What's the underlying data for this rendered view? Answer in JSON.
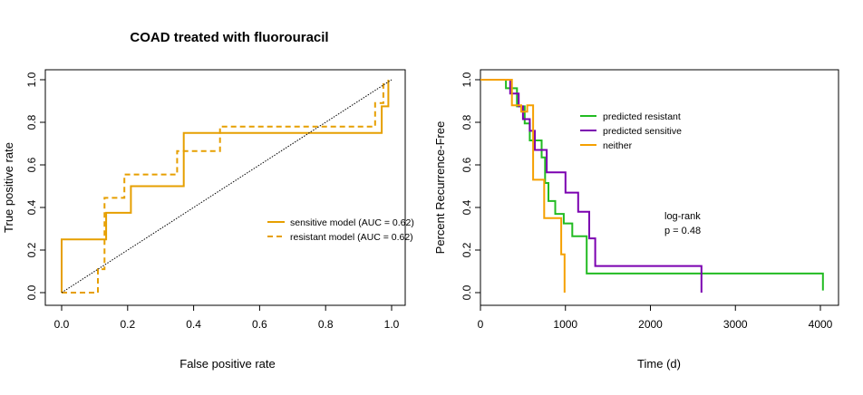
{
  "page": {
    "title": "COAD treated with fluorouracil"
  },
  "chart_data": [
    {
      "type": "line",
      "title": "COAD treated with fluorouracil",
      "xlabel": "False positive rate",
      "ylabel": "True positive rate",
      "xlim": [
        0,
        1
      ],
      "ylim": [
        0,
        1
      ],
      "xticks": [
        "0.0",
        "0.2",
        "0.4",
        "0.6",
        "0.8",
        "1.0"
      ],
      "yticks": [
        "0.0",
        "0.2",
        "0.4",
        "0.6",
        "0.8",
        "1.0"
      ],
      "legend_position": "right",
      "legend": [
        "sensitive model (AUC = 0.62)",
        "resistant model (AUC = 0.62)"
      ],
      "series": [
        {
          "name": "sensitive model (AUC = 0.62)",
          "color": "#E69F00",
          "dash": "solid",
          "x": [
            0,
            0,
            0.135,
            0.135,
            0.21,
            0.21,
            0.37,
            0.37,
            0.97,
            0.97,
            0.99,
            0.99
          ],
          "y": [
            0,
            0.25,
            0.25,
            0.375,
            0.375,
            0.5,
            0.5,
            0.75,
            0.75,
            0.875,
            0.875,
            1.0
          ]
        },
        {
          "name": "resistant model (AUC = 0.62)",
          "color": "#E69F00",
          "dash": "dashed",
          "x": [
            0,
            0.11,
            0.11,
            0.13,
            0.13,
            0.19,
            0.19,
            0.35,
            0.35,
            0.48,
            0.48,
            0.95,
            0.95,
            0.975,
            0.975
          ],
          "y": [
            0,
            0,
            0.11,
            0.11,
            0.445,
            0.445,
            0.555,
            0.555,
            0.665,
            0.665,
            0.78,
            0.78,
            0.89,
            0.89,
            1.0
          ]
        },
        {
          "name": "",
          "color": "#000000",
          "dash": "dotted",
          "x": [
            0,
            1
          ],
          "y": [
            0,
            1
          ]
        }
      ]
    },
    {
      "type": "line",
      "title": "",
      "xlabel": "Time (d)",
      "ylabel": "Percent Recurrence-Free",
      "xlim": [
        0,
        4000
      ],
      "ylim": [
        0,
        1
      ],
      "xticks": [
        "0",
        "1000",
        "2000",
        "3000",
        "4000"
      ],
      "yticks": [
        "0.0",
        "0.2",
        "0.4",
        "0.6",
        "0.8",
        "1.0"
      ],
      "legend_position": "top-center",
      "legend": [
        "predicted resistant",
        "predicted sensitive",
        "neither"
      ],
      "annotation": [
        "log-rank",
        "p = 0.48"
      ],
      "series": [
        {
          "name": "predicted resistant",
          "color": "#22BB22",
          "x": [
            0,
            300,
            300,
            430,
            430,
            520,
            520,
            580,
            580,
            720,
            720,
            760,
            760,
            800,
            800,
            880,
            880,
            980,
            980,
            1080,
            1080,
            1250,
            1250,
            4030,
            4030
          ],
          "y": [
            1.0,
            1.0,
            0.96,
            0.96,
            0.875,
            0.875,
            0.795,
            0.795,
            0.715,
            0.715,
            0.635,
            0.635,
            0.515,
            0.515,
            0.43,
            0.43,
            0.37,
            0.37,
            0.325,
            0.325,
            0.265,
            0.265,
            0.09,
            0.09,
            0.01
          ]
        },
        {
          "name": "predicted sensitive",
          "color": "#7B00B0",
          "x": [
            0,
            350,
            350,
            450,
            450,
            500,
            500,
            580,
            580,
            640,
            640,
            780,
            780,
            1000,
            1000,
            1150,
            1150,
            1280,
            1280,
            1350,
            1350,
            2600,
            2600
          ],
          "y": [
            1.0,
            1.0,
            0.935,
            0.935,
            0.875,
            0.875,
            0.815,
            0.815,
            0.76,
            0.76,
            0.67,
            0.67,
            0.565,
            0.565,
            0.47,
            0.47,
            0.38,
            0.38,
            0.255,
            0.255,
            0.125,
            0.125,
            0.0
          ]
        },
        {
          "name": "neither",
          "color": "#F5A000",
          "x": [
            0,
            370,
            370,
            480,
            480,
            550,
            550,
            620,
            620,
            750,
            750,
            950,
            950,
            990,
            990
          ],
          "y": [
            1.0,
            1.0,
            0.88,
            0.88,
            0.85,
            0.85,
            0.88,
            0.88,
            0.53,
            0.53,
            0.35,
            0.35,
            0.18,
            0.18,
            0.0
          ]
        }
      ]
    }
  ]
}
